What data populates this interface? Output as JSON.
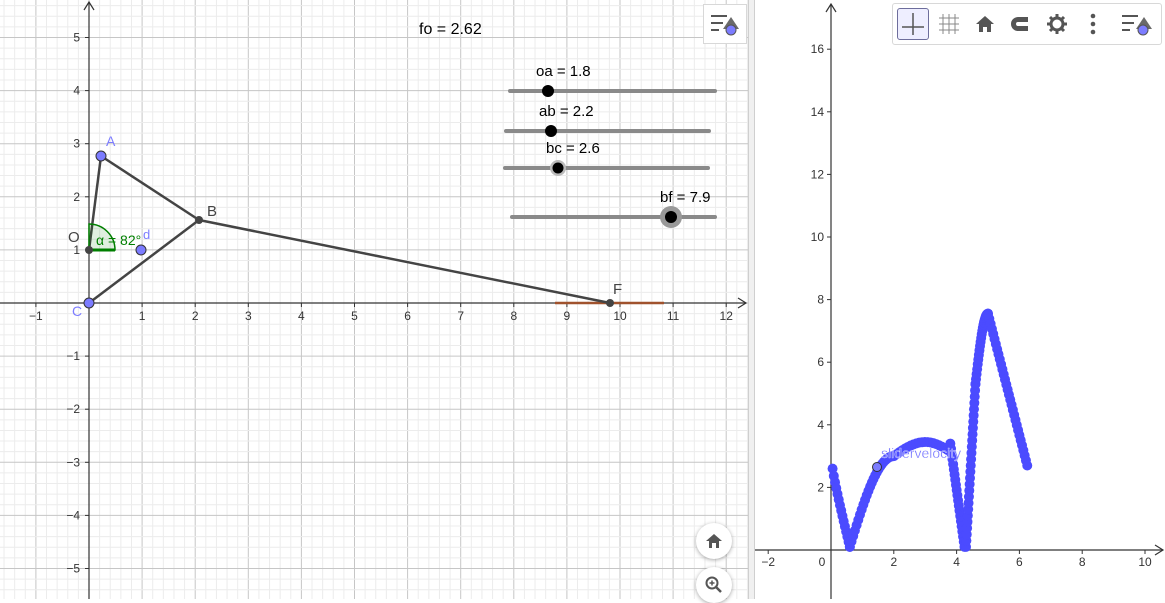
{
  "graphics1": {
    "fo_label": "fo = 2.62",
    "x_ticks": [
      "−1",
      "1",
      "2",
      "3",
      "4",
      "5",
      "6",
      "7",
      "8",
      "9",
      "10",
      "11",
      "12"
    ],
    "y_ticks": [
      "5",
      "4",
      "3",
      "2",
      "1",
      "−1",
      "−2",
      "−3",
      "−4",
      "−5"
    ],
    "origin_label": "0",
    "points": {
      "A": "A",
      "B": "B",
      "O": "O",
      "F": "F",
      "C": "C",
      "D": "d"
    },
    "angle_label": "α = 82°",
    "sliders": [
      {
        "name": "oa",
        "label": "oa = 1.8",
        "value": 1.8
      },
      {
        "name": "ab",
        "label": "ab = 2.2",
        "value": 2.2
      },
      {
        "name": "bc",
        "label": "bc = 2.6",
        "value": 2.6
      },
      {
        "name": "bf",
        "label": "bf = 7.9",
        "value": 7.9
      }
    ],
    "colors": {
      "accent": "#6464ff",
      "angle": "#007f00",
      "segment": "#444444",
      "slider_track": "#8a8a8a",
      "track": "#a0522d"
    }
  },
  "graphics2": {
    "x_ticks": [
      "−2",
      "0",
      "2",
      "4",
      "6",
      "8",
      "10"
    ],
    "y_ticks": [
      "16",
      "14",
      "12",
      "10",
      "8",
      "6",
      "4",
      "2"
    ],
    "locus_label": "slidervelocity",
    "colors": {
      "locus": "#4b4bff"
    }
  },
  "toolbar": {
    "icons": [
      "axes-icon",
      "grid-icon",
      "home-icon",
      "magnet-icon",
      "gear-icon",
      "more-icon"
    ]
  },
  "icons": {
    "style_bar": "style-bar-icon",
    "home": "home-icon",
    "zoom": "zoom-in-icon"
  }
}
